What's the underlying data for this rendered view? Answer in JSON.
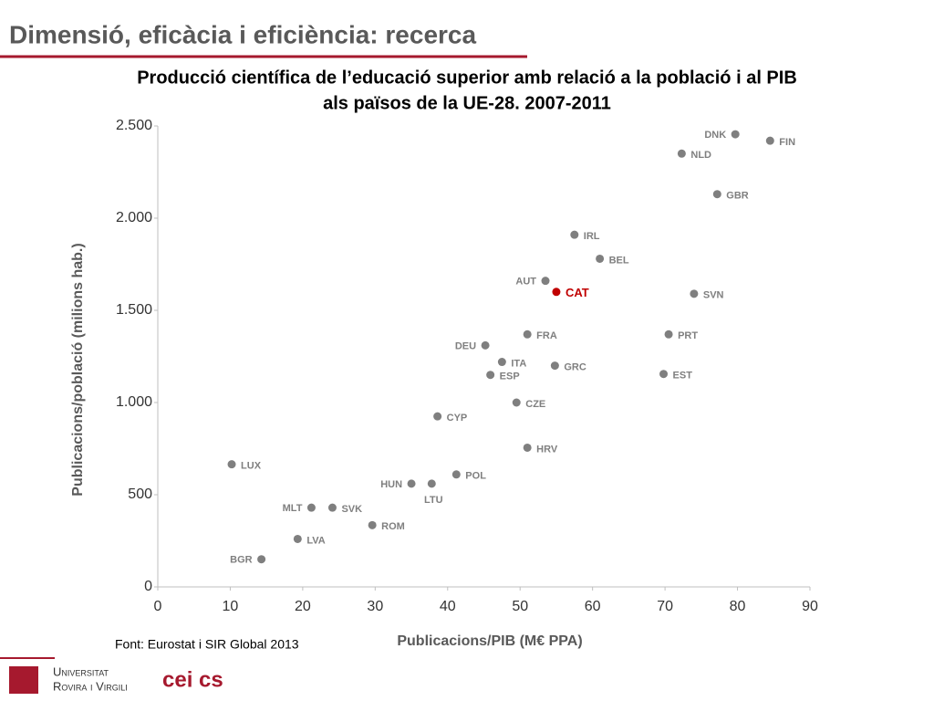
{
  "header": {
    "title": "Dimensió, eficàcia i eficiència: recerca"
  },
  "chart_data": {
    "type": "scatter",
    "title": [
      "Producció científica de l’educació superior amb relació a la població i al PIB",
      "als països de la UE-28. 2007-2011"
    ],
    "x_label": "Publicacions/PIB (M€ PPA)",
    "y_label": "Publicacions/població (milions hab.)",
    "labels": [
      "DNK",
      "FIN",
      "NLD",
      "GBR",
      "IRL",
      "BEL",
      "AUT",
      "CAT",
      "SVN",
      "FRA",
      "PRT",
      "DEU",
      "ITA",
      "GRC",
      "ESP",
      "EST",
      "CZE",
      "CYP",
      "HRV",
      "LUX",
      "POL",
      "HUN",
      "LTU",
      "MLT",
      "SVK",
      "ROM",
      "LVA",
      "BGR"
    ],
    "x": [
      79.7,
      84.5,
      72.3,
      77.2,
      57.5,
      61,
      53.5,
      55,
      74,
      51,
      70.5,
      45.2,
      47.5,
      54.8,
      45.9,
      69.8,
      49.5,
      38.6,
      51,
      10.2,
      41.2,
      35,
      37.8,
      21.2,
      24.1,
      29.6,
      19.3,
      14.3
    ],
    "y": [
      2455,
      2420,
      2350,
      2130,
      1910,
      1780,
      1660,
      1600,
      1590,
      1370,
      1370,
      1310,
      1220,
      1200,
      1150,
      1155,
      1000,
      925,
      755,
      665,
      610,
      560,
      560,
      430,
      430,
      335,
      260,
      150
    ],
    "colors": [
      "#7f7f7f",
      "#7f7f7f",
      "#7f7f7f",
      "#7f7f7f",
      "#7f7f7f",
      "#7f7f7f",
      "#7f7f7f",
      "#c00000",
      "#7f7f7f",
      "#7f7f7f",
      "#7f7f7f",
      "#7f7f7f",
      "#7f7f7f",
      "#7f7f7f",
      "#7f7f7f",
      "#7f7f7f",
      "#7f7f7f",
      "#7f7f7f",
      "#7f7f7f",
      "#7f7f7f",
      "#7f7f7f",
      "#7f7f7f",
      "#7f7f7f",
      "#7f7f7f",
      "#7f7f7f",
      "#7f7f7f",
      "#7f7f7f",
      "#7f7f7f"
    ],
    "xlim": [
      0,
      90
    ],
    "xticks": [
      0,
      10,
      20,
      30,
      40,
      50,
      60,
      70,
      80,
      90
    ],
    "ylim": [
      0,
      2500
    ],
    "yticks": [
      0,
      500,
      {
        "value": 1000,
        "label": "1.000"
      },
      {
        "value": 1500,
        "label": "1.500"
      },
      {
        "value": 2000,
        "label": "2.000"
      },
      {
        "value": 2500,
        "label": "2.500"
      }
    ],
    "grid": false,
    "source": "Font: Eurostat i SIR Global 2013"
  },
  "footer": {
    "university": [
      "Universitat",
      "Rovira i Virgili"
    ],
    "campus": "cei cs"
  }
}
